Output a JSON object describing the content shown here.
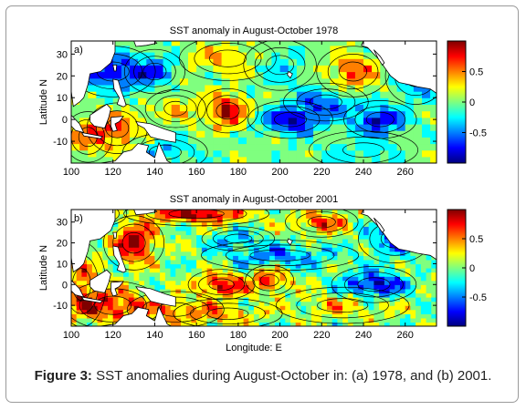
{
  "figure_caption": {
    "label": "Figure 3:",
    "text": "SST anomalies during August-October in: (a) 1978, and (b) 2001."
  },
  "colors": {
    "frame_border": "#9a9a9a",
    "land": "#ffffff",
    "contour": "#000000",
    "colormap": [
      "#00007f",
      "#0000ff",
      "#007fff",
      "#00ffff",
      "#7fff7f",
      "#ffff00",
      "#ff7f00",
      "#ff0000",
      "#7f0000"
    ]
  },
  "chart_data": [
    {
      "type": "heatmap",
      "panel_label": "a)",
      "title": "SST anomaly in August-October 1978",
      "xlabel": "",
      "ylabel": "Latitude N",
      "xlim": [
        100,
        275
      ],
      "ylim": [
        -20,
        36
      ],
      "xticks": [
        "100",
        "120",
        "140",
        "160",
        "180",
        "200",
        "220",
        "240",
        "260"
      ],
      "yticks": [
        "30",
        "20",
        "10",
        "0",
        "-10"
      ],
      "colorbar": {
        "range": [
          -1,
          1
        ],
        "ticks": [
          "0.5",
          "0",
          "-0.5"
        ]
      },
      "features": [
        {
          "lon": 175,
          "lat": 4,
          "anomaly": 0.8,
          "slon": 10,
          "slat": 7
        },
        {
          "lon": 122,
          "lat": -4,
          "anomaly": 0.6,
          "slon": 10,
          "slat": 8
        },
        {
          "lon": 108,
          "lat": -8,
          "anomaly": 0.45,
          "slon": 8,
          "slat": 8
        },
        {
          "lon": 235,
          "lat": 22,
          "anomaly": 0.55,
          "slon": 12,
          "slat": 8
        },
        {
          "lon": 175,
          "lat": 28,
          "anomaly": 0.35,
          "slon": 16,
          "slat": 7
        },
        {
          "lon": 150,
          "lat": 5,
          "anomaly": 0.3,
          "slon": 10,
          "slat": 6
        },
        {
          "lon": 205,
          "lat": 0,
          "anomaly": -0.8,
          "slon": 14,
          "slat": 6
        },
        {
          "lon": 248,
          "lat": 0,
          "anomaly": -0.8,
          "slon": 12,
          "slat": 6
        },
        {
          "lon": 222,
          "lat": 8,
          "anomaly": -0.5,
          "slon": 14,
          "slat": 6
        },
        {
          "lon": 120,
          "lat": 22,
          "anomaly": -0.75,
          "slon": 14,
          "slat": 8
        },
        {
          "lon": 140,
          "lat": 22,
          "anomaly": -0.5,
          "slon": 10,
          "slat": 7
        },
        {
          "lon": 265,
          "lat": 20,
          "anomaly": -0.6,
          "slon": 10,
          "slat": 9
        },
        {
          "lon": 200,
          "lat": 25,
          "anomaly": -0.3,
          "slon": 12,
          "slat": 8
        },
        {
          "lon": 145,
          "lat": -15,
          "anomaly": -0.3,
          "slon": 14,
          "slat": 6
        },
        {
          "lon": 240,
          "lat": -14,
          "anomaly": -0.25,
          "slon": 18,
          "slat": 6
        }
      ]
    },
    {
      "type": "heatmap",
      "panel_label": "b)",
      "title": "SST anomaly in August-October 2001",
      "xlabel": "Longitude: E",
      "ylabel": "Latitude N",
      "xlim": [
        100,
        275
      ],
      "ylim": [
        -20,
        36
      ],
      "xticks": [
        "100",
        "120",
        "140",
        "160",
        "180",
        "200",
        "220",
        "240",
        "260"
      ],
      "yticks": [
        "30",
        "20",
        "10",
        "0",
        "-10"
      ],
      "colorbar": {
        "range": [
          -1,
          1
        ],
        "ticks": [
          "0.5",
          "0",
          "-0.5"
        ]
      },
      "features": [
        {
          "lon": 130,
          "lat": 20,
          "anomaly": 0.9,
          "slon": 10,
          "slat": 9
        },
        {
          "lon": 172,
          "lat": 0,
          "anomaly": 0.85,
          "slon": 11,
          "slat": 5
        },
        {
          "lon": 195,
          "lat": 2,
          "anomaly": 0.7,
          "slon": 8,
          "slat": 5
        },
        {
          "lon": 160,
          "lat": 34,
          "anomaly": 0.85,
          "slon": 24,
          "slat": 4
        },
        {
          "lon": 220,
          "lat": 30,
          "anomaly": 0.6,
          "slon": 12,
          "slat": 5
        },
        {
          "lon": 120,
          "lat": -10,
          "anomaly": 0.7,
          "slon": 16,
          "slat": 8
        },
        {
          "lon": 105,
          "lat": 0,
          "anomaly": 0.55,
          "slon": 8,
          "slat": 14
        },
        {
          "lon": 150,
          "lat": -12,
          "anomaly": 0.4,
          "slon": 16,
          "slat": 6
        },
        {
          "lon": 175,
          "lat": -14,
          "anomaly": 0.35,
          "slon": 18,
          "slat": 5
        },
        {
          "lon": 230,
          "lat": -10,
          "anomaly": 0.3,
          "slon": 22,
          "slat": 6
        },
        {
          "lon": 245,
          "lat": 0,
          "anomaly": -0.8,
          "slon": 14,
          "slat": 6
        },
        {
          "lon": 200,
          "lat": 14,
          "anomaly": -0.45,
          "slon": 26,
          "slat": 5
        },
        {
          "lon": 255,
          "lat": 22,
          "anomaly": -0.55,
          "slon": 12,
          "slat": 8
        },
        {
          "lon": 180,
          "lat": 22,
          "anomaly": -0.35,
          "slon": 12,
          "slat": 4
        },
        {
          "lon": 115,
          "lat": 34,
          "anomaly": -0.3,
          "slon": 8,
          "slat": 4
        }
      ]
    }
  ]
}
